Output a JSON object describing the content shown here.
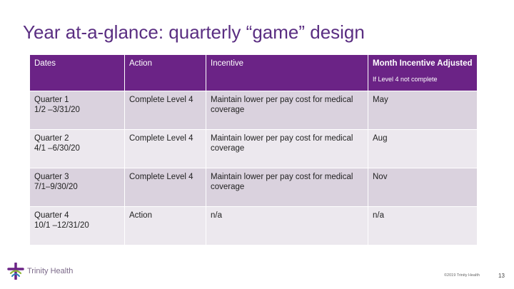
{
  "title": "Year at-a-glance: quarterly “game” design",
  "table": {
    "headers": {
      "dates": "Dates",
      "action": "Action",
      "incentive": "Incentive",
      "month": "Month Incentive Adjusted",
      "month_note": "If Level 4 not complete"
    },
    "rows": [
      {
        "quarter": "Quarter 1",
        "range": "1/2 –3/31/20",
        "action": "Complete Level 4",
        "incentive": "Maintain lower per pay cost for medical coverage",
        "month": "May"
      },
      {
        "quarter": "Quarter 2",
        "range": "4/1 –6/30/20",
        "action": "Complete Level 4",
        "incentive": "Maintain lower per pay cost for medical coverage",
        "month": "Aug"
      },
      {
        "quarter": "Quarter 3",
        "range": "7/1–9/30/20",
        "action": "Complete Level 4",
        "incentive": "Maintain lower per pay cost for medical coverage",
        "month": "Nov"
      },
      {
        "quarter": "Quarter 4",
        "range": "10/1 –12/31/20",
        "action": "Action",
        "incentive": "n/a",
        "month": "n/a"
      }
    ]
  },
  "footer": {
    "logo_text": "Trinity Health",
    "copyright": "©2019 Trinity Health",
    "page_number": "13"
  },
  "colors": {
    "title": "#5a2e82",
    "header_bg": "#6b2386",
    "row_dark": "#dad2de",
    "row_light": "#ece8ee"
  }
}
